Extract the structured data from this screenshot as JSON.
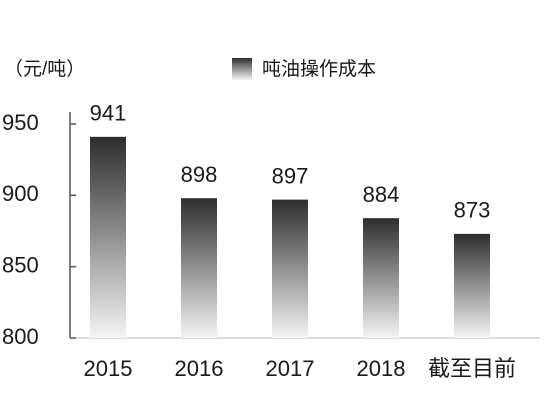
{
  "chart_data": {
    "type": "bar",
    "unit_label": "（元/吨）",
    "legend_label": "吨油操作成本",
    "categories": [
      "2015",
      "2016",
      "2017",
      "2018",
      "截至目前"
    ],
    "values": [
      941,
      898,
      897,
      884,
      873
    ],
    "color": "#2e2e2e",
    "ylim": [
      800,
      950
    ],
    "yticks": [
      800,
      850,
      900,
      950
    ]
  }
}
